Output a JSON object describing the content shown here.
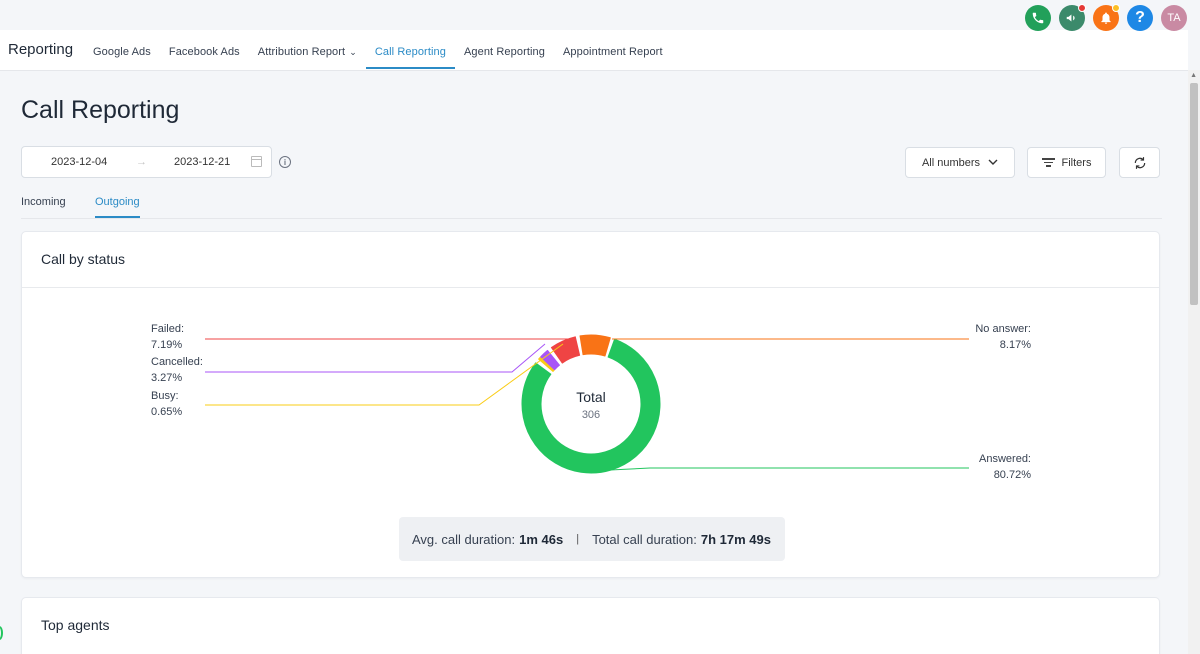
{
  "nav": {
    "brand": "Reporting",
    "items": [
      {
        "label": "Google Ads"
      },
      {
        "label": "Facebook Ads"
      },
      {
        "label": "Attribution Report"
      },
      {
        "label": "Call Reporting"
      },
      {
        "label": "Agent Reporting"
      },
      {
        "label": "Appointment Report"
      }
    ],
    "active": "Call Reporting"
  },
  "top_icons": {
    "avatar_initials": "TA",
    "help_glyph": "?",
    "icons": [
      "phone-icon",
      "megaphone-icon",
      "bell-icon",
      "help-icon"
    ]
  },
  "page": {
    "title": "Call Reporting"
  },
  "filters": {
    "date_from": "2023-12-04",
    "date_to": "2023-12-21",
    "numbers_select": "All numbers",
    "filters_label": "Filters"
  },
  "tabs": {
    "incoming": "Incoming",
    "outgoing": "Outgoing",
    "active": "Outgoing"
  },
  "status_card": {
    "title": "Call by status",
    "center_label": "Total",
    "center_value": "306",
    "avg_duration_label": "Avg. call duration:",
    "avg_duration_value": "1m 46s",
    "separator": "|",
    "total_duration_label": "Total call duration:",
    "total_duration_value": "7h 17m 49s"
  },
  "chart_data": {
    "type": "pie",
    "total": 306,
    "series": [
      {
        "name": "Answered:",
        "label": "80.72%",
        "value": 80.72,
        "color": "#22c55e"
      },
      {
        "name": "Busy:",
        "label": "0.65%",
        "value": 0.65,
        "color": "#facc15"
      },
      {
        "name": "Cancelled:",
        "label": "3.27%",
        "value": 3.27,
        "color": "#a855f7"
      },
      {
        "name": "Failed:",
        "label": "7.19%",
        "value": 7.19,
        "color": "#ef4444"
      },
      {
        "name": "No answer:",
        "label": "8.17%",
        "value": 8.17,
        "color": "#f97316"
      }
    ]
  },
  "agents_card": {
    "title": "Top agents"
  },
  "colors": {
    "accent": "#2b8bc6",
    "answered": "#22c55e"
  }
}
